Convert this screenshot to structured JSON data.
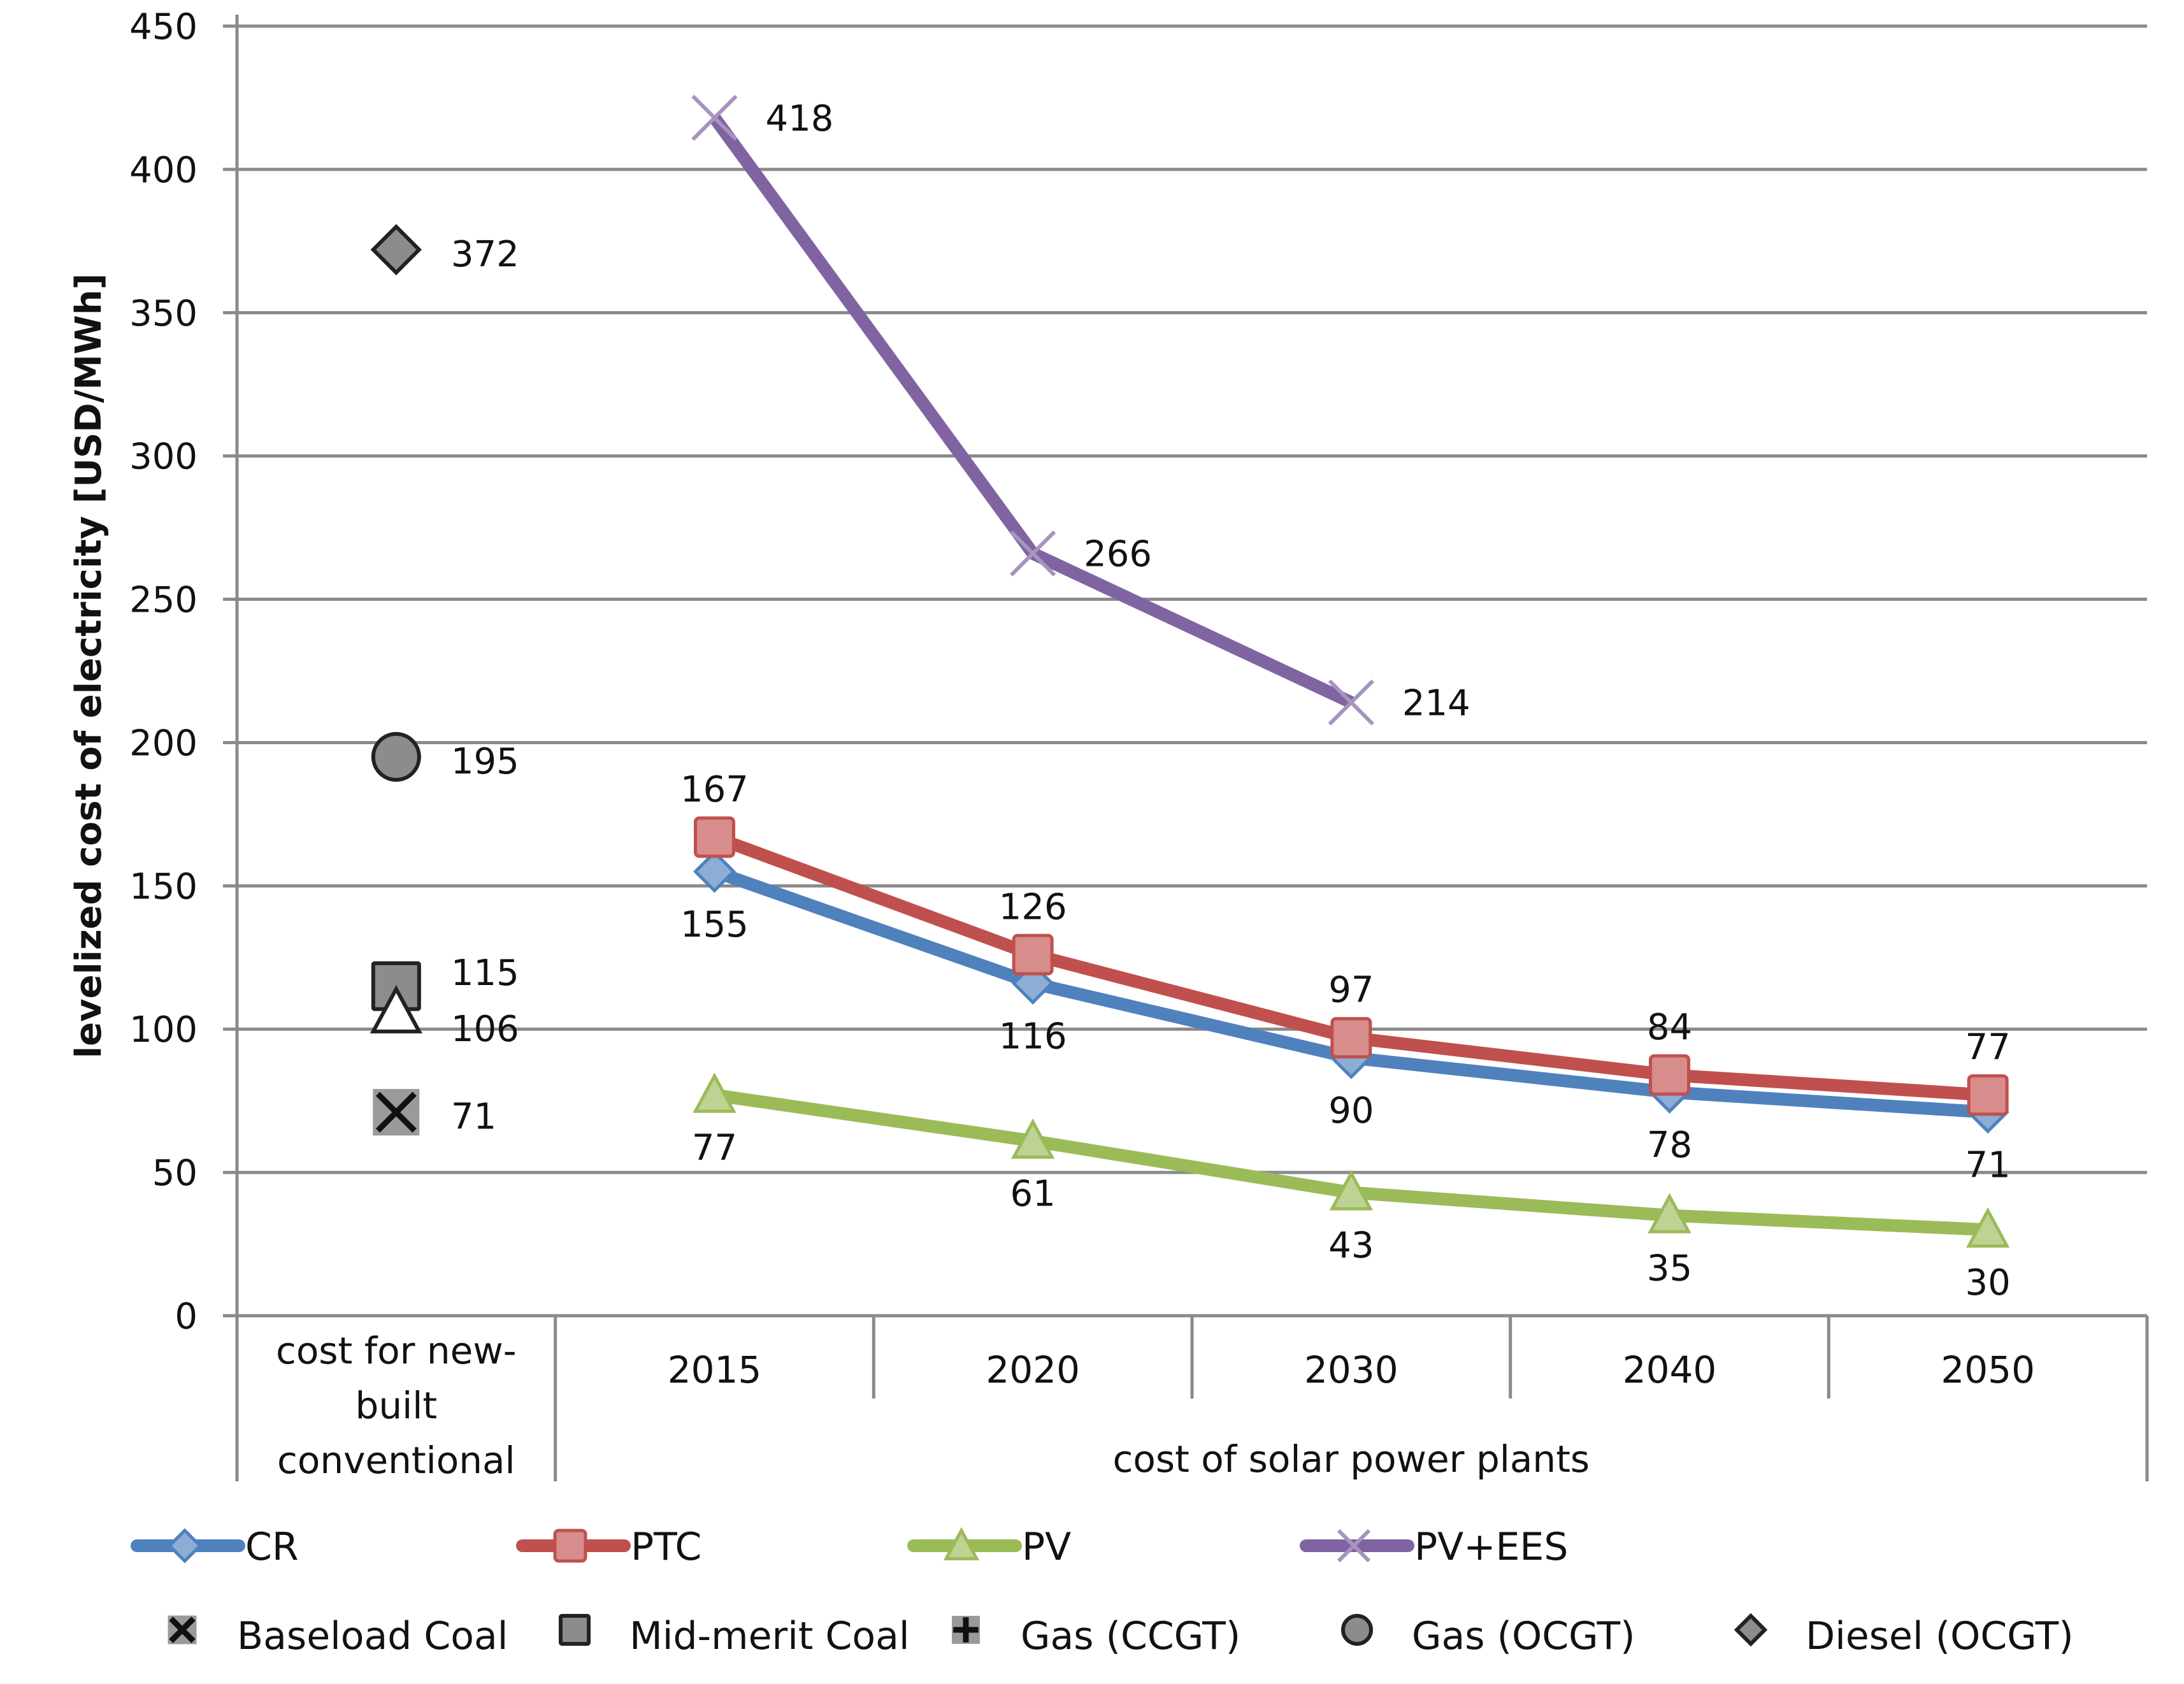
{
  "chart_data": {
    "type": "line",
    "ylabel": "levelized cost of electricity [USD/MWh]",
    "ylim": [
      0,
      450
    ],
    "yticks": [
      0,
      50,
      100,
      150,
      200,
      250,
      300,
      350,
      400,
      450
    ],
    "grid": true,
    "categories": [
      "cost for new-built conventional",
      "2015",
      "2020",
      "2030",
      "2040",
      "2050"
    ],
    "category_lines": [
      "cost for new-",
      "built",
      "conventional"
    ],
    "group_labels": {
      "conventional": "",
      "solar": "cost of solar power plants"
    },
    "series": [
      {
        "name": "CR",
        "color": "#4f81bd",
        "marker": "diamond",
        "x": [
          "2015",
          "2020",
          "2030",
          "2040",
          "2050"
        ],
        "values": [
          155,
          116,
          90,
          78,
          71
        ],
        "label_pos": "below"
      },
      {
        "name": "PTC",
        "color": "#c0504d",
        "marker": "square",
        "x": [
          "2015",
          "2020",
          "2030",
          "2040",
          "2050"
        ],
        "values": [
          167,
          126,
          97,
          84,
          77
        ],
        "label_pos": "above"
      },
      {
        "name": "PV",
        "color": "#9bbb59",
        "marker": "triangle",
        "x": [
          "2015",
          "2020",
          "2030",
          "2040",
          "2050"
        ],
        "values": [
          77,
          61,
          43,
          35,
          30
        ],
        "label_pos": "below"
      },
      {
        "name": "PV+EES",
        "color": "#8064a2",
        "marker": "x",
        "x": [
          "2015",
          "2020",
          "2030"
        ],
        "values": [
          418,
          266,
          214
        ],
        "label_pos": "right"
      }
    ],
    "conventional": [
      {
        "name": "Baseload Coal",
        "marker": "x-box",
        "value": 71
      },
      {
        "name": "Mid-merit Coal",
        "marker": "square",
        "value": 115
      },
      {
        "name": "Gas (CCGT)",
        "marker": "plus",
        "value": null
      },
      {
        "name": "Gas (OCGT)",
        "marker": "circle",
        "value": 195
      },
      {
        "name": "Diesel (OCGT)",
        "marker": "diamond",
        "value": 372
      },
      {
        "name": "",
        "marker": "triangle",
        "value": 106
      }
    ],
    "legend_position": "bottom"
  }
}
